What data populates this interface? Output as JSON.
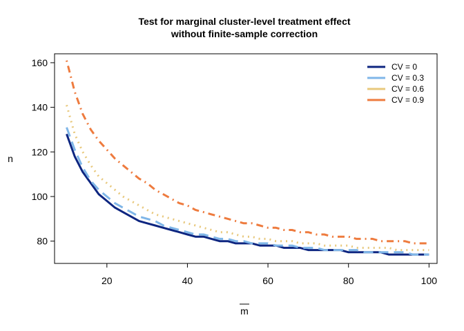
{
  "chart_data": {
    "type": "line",
    "title": [
      "Test for marginal cluster-level treatment effect",
      "without finite-sample correction"
    ],
    "xlabel": "m",
    "ylabel": "n",
    "xlim": [
      7,
      102
    ],
    "ylim": [
      70,
      164
    ],
    "xticks": [
      20,
      40,
      60,
      80,
      100
    ],
    "yticks": [
      80,
      100,
      120,
      140,
      160
    ],
    "grid": false,
    "legend_position": "top-right",
    "series": [
      {
        "name": "CV = 0",
        "color": "#0d2580",
        "dash": "solid",
        "x": [
          10,
          12,
          14,
          16,
          18,
          20,
          22,
          24,
          26,
          28,
          30,
          32,
          34,
          36,
          38,
          40,
          42,
          44,
          46,
          48,
          50,
          52,
          54,
          56,
          58,
          60,
          62,
          64,
          66,
          68,
          70,
          72,
          74,
          76,
          78,
          80,
          82,
          84,
          86,
          88,
          90,
          92,
          94,
          96,
          98,
          100
        ],
        "y": [
          128,
          118,
          111,
          106,
          101,
          98,
          95,
          93,
          91,
          89,
          88,
          87,
          86,
          85,
          84,
          83,
          82,
          82,
          81,
          80,
          80,
          79,
          79,
          79,
          78,
          78,
          78,
          77,
          77,
          77,
          76,
          76,
          76,
          76,
          76,
          75,
          75,
          75,
          75,
          75,
          74,
          74,
          74,
          74,
          74,
          74
        ]
      },
      {
        "name": "CV = 0.3",
        "color": "#7fb6e8",
        "dash": "longdash",
        "x": [
          10,
          12,
          14,
          16,
          18,
          20,
          22,
          24,
          26,
          28,
          30,
          32,
          34,
          36,
          38,
          40,
          42,
          44,
          46,
          48,
          50,
          52,
          54,
          56,
          58,
          60,
          62,
          64,
          66,
          68,
          70,
          72,
          74,
          76,
          78,
          80,
          82,
          84,
          86,
          88,
          90,
          92,
          94,
          96,
          98,
          100
        ],
        "y": [
          131,
          121,
          113,
          107,
          103,
          100,
          97,
          95,
          93,
          91,
          90,
          89,
          87,
          86,
          85,
          84,
          83,
          83,
          82,
          81,
          81,
          80,
          80,
          79,
          79,
          79,
          78,
          78,
          78,
          77,
          77,
          77,
          76,
          76,
          76,
          76,
          76,
          75,
          75,
          75,
          75,
          75,
          75,
          74,
          74,
          74
        ]
      },
      {
        "name": "CV = 0.6",
        "color": "#e8c87c",
        "dash": "dotted",
        "x": [
          10,
          12,
          14,
          16,
          18,
          20,
          22,
          24,
          26,
          28,
          30,
          32,
          34,
          36,
          38,
          40,
          42,
          44,
          46,
          48,
          50,
          52,
          54,
          56,
          58,
          60,
          62,
          64,
          66,
          68,
          70,
          72,
          74,
          76,
          78,
          80,
          82,
          84,
          86,
          88,
          90,
          92,
          94,
          96,
          98,
          100
        ],
        "y": [
          141,
          128,
          120,
          114,
          109,
          106,
          103,
          100,
          98,
          96,
          94,
          92,
          91,
          90,
          89,
          88,
          87,
          86,
          85,
          84,
          84,
          83,
          82,
          82,
          81,
          81,
          80,
          80,
          80,
          79,
          79,
          79,
          78,
          78,
          78,
          78,
          77,
          77,
          77,
          77,
          77,
          76,
          76,
          76,
          76,
          76
        ]
      },
      {
        "name": "CV = 0.9",
        "color": "#ee7b3e",
        "dash": "dotdash",
        "x": [
          10,
          12,
          14,
          16,
          18,
          20,
          22,
          24,
          26,
          28,
          30,
          32,
          34,
          36,
          38,
          40,
          42,
          44,
          46,
          48,
          50,
          52,
          54,
          56,
          58,
          60,
          62,
          64,
          66,
          68,
          70,
          72,
          74,
          76,
          78,
          80,
          82,
          84,
          86,
          88,
          90,
          92,
          94,
          96,
          98,
          100
        ],
        "y": [
          161,
          147,
          137,
          130,
          125,
          121,
          117,
          114,
          111,
          108,
          106,
          103,
          101,
          99,
          97,
          96,
          94,
          93,
          92,
          91,
          90,
          89,
          88,
          88,
          87,
          86,
          86,
          85,
          85,
          84,
          84,
          83,
          83,
          82,
          82,
          82,
          81,
          81,
          81,
          80,
          80,
          80,
          80,
          79,
          79,
          79
        ]
      }
    ]
  }
}
